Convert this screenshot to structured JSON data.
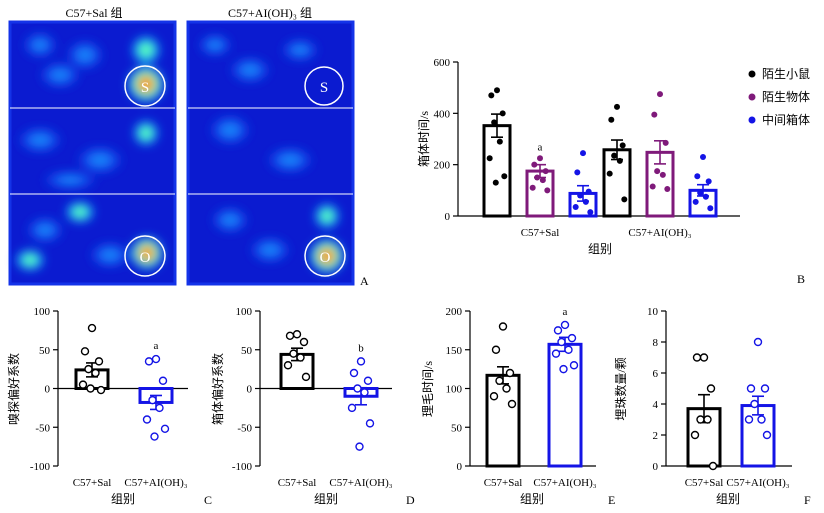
{
  "heatmap_panel": {
    "left_title": "C57+Sal 组",
    "right_title": "C57+AI(OH)₃ 组",
    "left_markers": [
      "S",
      "O"
    ],
    "right_markers": [
      "S",
      "O"
    ],
    "letter": "A",
    "colors": {
      "background": "#0b1bd0",
      "border": "#1433e8",
      "hot": "#ff2200"
    }
  },
  "chart_data": [
    {
      "panel": "B",
      "type": "bar",
      "ylabel": "箱体时间/s",
      "xlabel": "组别",
      "categories": [
        "C57+Sal",
        "C57+AI(OH)₃"
      ],
      "ylim": [
        0,
        600
      ],
      "yticks": [
        0,
        200,
        400,
        600
      ],
      "legend_position": "top-right",
      "series": [
        {
          "name": "陌生小鼠",
          "color": "#000000",
          "values": [
            352,
            258
          ],
          "errors": [
            45,
            38
          ],
          "points": [
            [
              490,
              470,
              400,
              365,
              290,
              225,
              155,
              130
            ],
            [
              425,
              375,
              275,
              235,
              215,
              165,
              65
            ]
          ]
        },
        {
          "name": "陌生物体",
          "color": "#7f1a7a",
          "values": [
            175,
            248
          ],
          "errors": [
            25,
            45
          ],
          "points": [
            [
              225,
              200,
              175,
              150,
              140,
              110,
              100
            ],
            [
              475,
              395,
              285,
              175,
              160,
              115,
              105
            ]
          ]
        },
        {
          "name": "中间箱体",
          "color": "#1414e6",
          "values": [
            88,
            100
          ],
          "errors": [
            30,
            22
          ],
          "points": [
            [
              245,
              170,
              95,
              80,
              55,
              35,
              15
            ],
            [
              230,
              155,
              135,
              90,
              75,
              55,
              30
            ]
          ]
        }
      ],
      "annotations": [
        {
          "series": "陌生物体",
          "category": "C57+Sal",
          "text": "a"
        }
      ]
    },
    {
      "panel": "C",
      "type": "bar",
      "ylabel": "嗅探偏好系数",
      "xlabel": "组别",
      "categories": [
        "C57+Sal",
        "C57+AI(OH)₃"
      ],
      "ylim": [
        -100,
        100
      ],
      "yticks": [
        -100,
        -50,
        0,
        50,
        100
      ],
      "values": [
        24,
        -18
      ],
      "errors": [
        9,
        9
      ],
      "colors": [
        "#000000",
        "#1414e6"
      ],
      "points": [
        [
          78,
          48,
          35,
          25,
          20,
          5,
          -2,
          0
        ],
        [
          38,
          35,
          10,
          -15,
          -25,
          -40,
          -52,
          -62
        ]
      ],
      "annotations": [
        {
          "category": "C57+AI(OH)₃",
          "text": "a"
        }
      ]
    },
    {
      "panel": "D",
      "type": "bar",
      "ylabel": "箱体偏好系数",
      "xlabel": "组别",
      "categories": [
        "C57+Sal",
        "C57+AI(OH)₃"
      ],
      "ylim": [
        -100,
        100
      ],
      "yticks": [
        -100,
        -50,
        0,
        50,
        100
      ],
      "values": [
        44,
        -10
      ],
      "errors": [
        8,
        11
      ],
      "colors": [
        "#000000",
        "#1414e6"
      ],
      "points": [
        [
          70,
          68,
          60,
          45,
          40,
          30,
          15
        ],
        [
          35,
          20,
          10,
          0,
          -5,
          -25,
          -45,
          -75
        ]
      ],
      "annotations": [
        {
          "category": "C57+AI(OH)₃",
          "text": "b"
        }
      ]
    },
    {
      "panel": "E",
      "type": "bar",
      "ylabel": "理毛时间/s",
      "xlabel": "组别",
      "categories": [
        "C57+Sal",
        "C57+AI(OH)₃"
      ],
      "ylim": [
        0,
        200
      ],
      "yticks": [
        0,
        50,
        100,
        150,
        200
      ],
      "values": [
        117,
        157
      ],
      "errors": [
        11,
        9
      ],
      "colors": [
        "#000000",
        "#1414e6"
      ],
      "points": [
        [
          180,
          150,
          120,
          110,
          100,
          90,
          80
        ],
        [
          182,
          175,
          165,
          160,
          150,
          145,
          130,
          125
        ]
      ],
      "annotations": [
        {
          "category": "C57+AI(OH)₃",
          "text": "a"
        }
      ]
    },
    {
      "panel": "F",
      "type": "bar",
      "ylabel": "埋珠数量/颗",
      "xlabel": "组别",
      "categories": [
        "C57+Sal",
        "C57+AI(OH)₃"
      ],
      "ylim": [
        0,
        10
      ],
      "yticks": [
        0,
        2,
        4,
        6,
        8,
        10
      ],
      "values": [
        3.7,
        3.9
      ],
      "errors": [
        0.9,
        0.6
      ],
      "colors": [
        "#000000",
        "#1414e6"
      ],
      "points": [
        [
          7,
          7,
          5,
          3,
          3,
          2,
          0
        ],
        [
          8,
          5,
          5,
          4,
          3,
          3,
          2
        ]
      ],
      "annotations": []
    }
  ]
}
